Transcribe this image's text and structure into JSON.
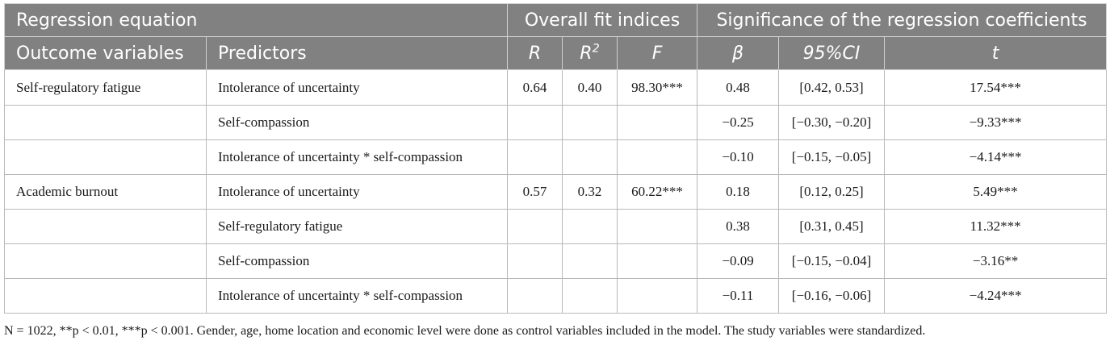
{
  "table": {
    "group_headers": {
      "regression_equation": "Regression equation",
      "overall_fit": "Overall fit indices",
      "significance": "Significance of the regression coefficients"
    },
    "column_headers": {
      "outcome": "Outcome variables",
      "predictors": "Predictors",
      "r": "R",
      "r2_base": "R",
      "r2_sup": "2",
      "f": "F",
      "beta": "β",
      "ci": "95%CI",
      "t": "t"
    },
    "rows": [
      {
        "outcome": "Self-regulatory fatigue",
        "predictor": "Intolerance of uncertainty",
        "r": "0.64",
        "r2": "0.40",
        "f": "98.30***",
        "beta": "0.48",
        "ci": "[0.42, 0.53]",
        "t": "17.54***"
      },
      {
        "outcome": "",
        "predictor": "Self-compassion",
        "r": "",
        "r2": "",
        "f": "",
        "beta": "−0.25",
        "ci": "[−0.30, −0.20]",
        "t": "−9.33***"
      },
      {
        "outcome": "",
        "predictor": "Intolerance of uncertainty * self-compassion",
        "r": "",
        "r2": "",
        "f": "",
        "beta": "−0.10",
        "ci": "[−0.15, −0.05]",
        "t": "−4.14***"
      },
      {
        "outcome": "Academic burnout",
        "predictor": "Intolerance of uncertainty",
        "r": "0.57",
        "r2": "0.32",
        "f": "60.22***",
        "beta": "0.18",
        "ci": "[0.12, 0.25]",
        "t": "5.49***"
      },
      {
        "outcome": "",
        "predictor": "Self-regulatory fatigue",
        "r": "",
        "r2": "",
        "f": "",
        "beta": "0.38",
        "ci": "[0.31, 0.45]",
        "t": "11.32***"
      },
      {
        "outcome": "",
        "predictor": "Self-compassion",
        "r": "",
        "r2": "",
        "f": "",
        "beta": "−0.09",
        "ci": "[−0.15, −0.04]",
        "t": "−3.16**"
      },
      {
        "outcome": "",
        "predictor": "Intolerance of uncertainty * self-compassion",
        "r": "",
        "r2": "",
        "f": "",
        "beta": "−0.11",
        "ci": "[−0.16, −0.06]",
        "t": "−4.24***"
      }
    ]
  },
  "footnote": "N = 1022, **p < 0.01, ***p < 0.001. Gender, age, home location and economic level were done as control variables included in the model. The study variables were standardized.",
  "colors": {
    "header_bg": "#818181",
    "header_text": "#ffffff",
    "border": "#b9b9b9",
    "body_text": "#1a1a1a"
  }
}
